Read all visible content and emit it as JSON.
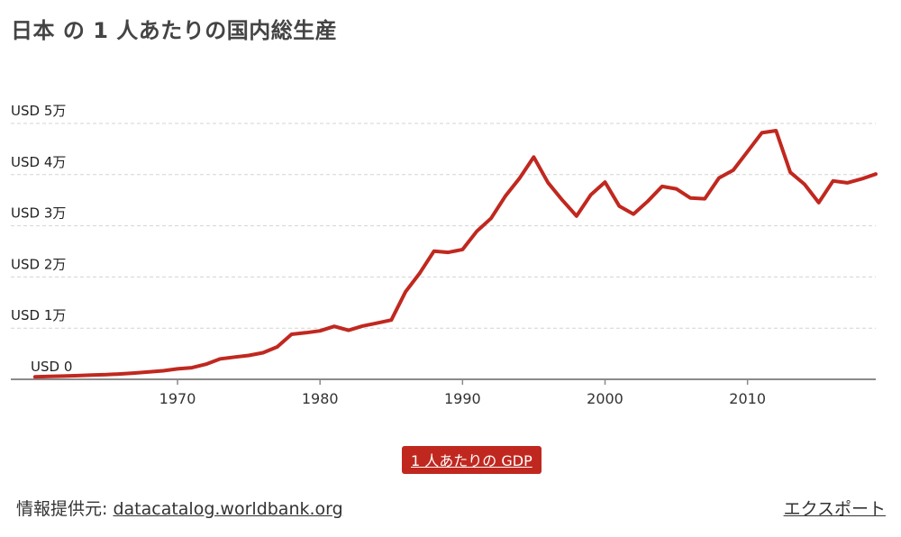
{
  "title": "日本 の 1 人あたりの国内総生産",
  "legend_label": "1 人あたりの GDP",
  "source_prefix": "情報提供元:",
  "source_link": "datacatalog.worldbank.org",
  "export_label": "エクスポート",
  "colors": {
    "series": "#c0281f"
  },
  "chart_data": {
    "type": "line",
    "title": "日本 の 1 人あたりの国内総生産",
    "xlabel": "",
    "ylabel": "",
    "xlim": [
      1958.3,
      2019
    ],
    "ylim": [
      0,
      50000
    ],
    "grid": true,
    "yticks": [
      0,
      10000,
      20000,
      30000,
      40000,
      50000
    ],
    "ytick_labels": [
      "USD 0",
      "USD 1万",
      "USD 2万",
      "USD 3万",
      "USD 4万",
      "USD 5万"
    ],
    "xticks": [
      1970,
      1980,
      1990,
      2000,
      2010
    ],
    "xtick_labels": [
      "1970",
      "1980",
      "1990",
      "2000",
      "2010"
    ],
    "series": [
      {
        "name": "1 人あたりの GDP",
        "x": [
          1960,
          1961,
          1962,
          1963,
          1964,
          1965,
          1966,
          1967,
          1968,
          1969,
          1970,
          1971,
          1972,
          1973,
          1974,
          1975,
          1976,
          1977,
          1978,
          1979,
          1980,
          1981,
          1982,
          1983,
          1984,
          1985,
          1986,
          1987,
          1988,
          1989,
          1990,
          1991,
          1992,
          1993,
          1994,
          1995,
          1996,
          1997,
          1998,
          1999,
          2000,
          2001,
          2002,
          2003,
          2004,
          2005,
          2006,
          2007,
          2008,
          2009,
          2010,
          2011,
          2012,
          2013,
          2014,
          2015,
          2016,
          2017,
          2018,
          2019
        ],
        "values": [
          480,
          560,
          630,
          720,
          840,
          920,
          1060,
          1230,
          1450,
          1670,
          2040,
          2270,
          2950,
          3990,
          4350,
          4670,
          5200,
          6330,
          8800,
          9100,
          9470,
          10360,
          9580,
          10430,
          10980,
          11580,
          17110,
          20750,
          25060,
          24810,
          25370,
          28930,
          31460,
          35770,
          39270,
          43440,
          38440,
          35020,
          31900,
          36030,
          38530,
          33850,
          32290,
          34810,
          37690,
          37220,
          35430,
          35280,
          39340,
          40860,
          44510,
          48170,
          48600,
          40450,
          38110,
          34520,
          38760,
          38390,
          39160,
          40110
        ]
      }
    ]
  }
}
